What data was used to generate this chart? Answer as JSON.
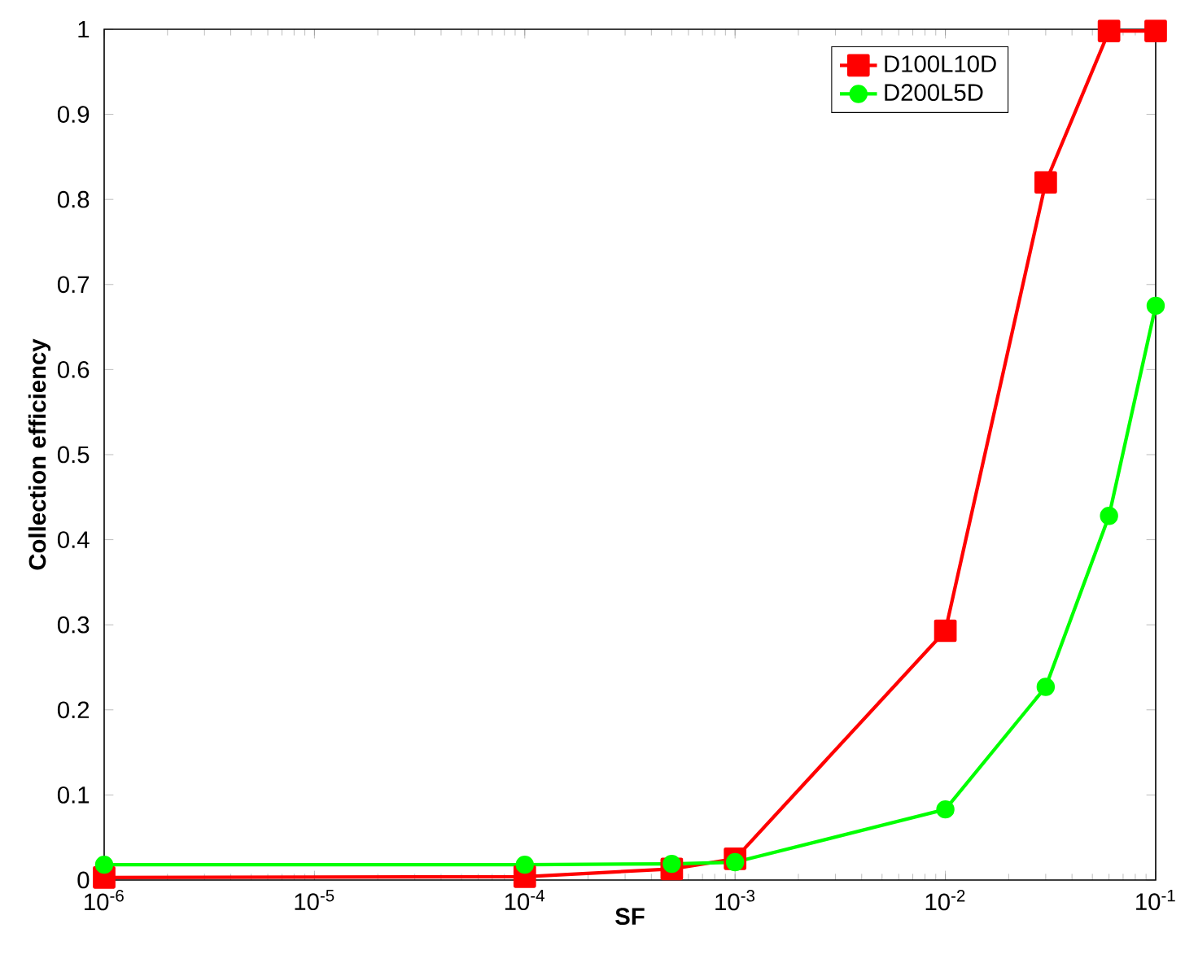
{
  "chart_data": {
    "type": "line",
    "xlabel": "SF",
    "ylabel": "Collection efficiency",
    "log": "x",
    "grid": false,
    "legend": "top right",
    "xlim": [
      1e-06,
      0.1
    ],
    "ylim": [
      0,
      1
    ],
    "xticks": [
      {
        "value": 1e-06,
        "label": "10$^{-6}$"
      },
      {
        "value": 1e-05,
        "label": "10$^{-5}$"
      },
      {
        "value": 0.0001,
        "label": "10$^{-4}$"
      },
      {
        "value": 0.001,
        "label": "10$^{-3}$"
      },
      {
        "value": 0.01,
        "label": "10$^{-2}$"
      },
      {
        "value": 0.1,
        "label": "10$^{-1}$"
      }
    ],
    "yticks": [
      0,
      0.1,
      0.2,
      0.3,
      0.4,
      0.5,
      0.6,
      0.7,
      0.8,
      0.9,
      1
    ],
    "x": [
      1e-06,
      0.0001,
      0.0005,
      0.001,
      0.01,
      0.03,
      0.06,
      0.1
    ],
    "series": [
      {
        "name": "D100L10D",
        "color": "#ff0000",
        "marker": "square",
        "values": [
          0.003,
          0.004,
          0.013,
          0.025,
          0.293,
          0.82,
          0.998,
          0.998
        ]
      },
      {
        "name": "D200L5D",
        "color": "#00ff00",
        "marker": "circle",
        "values": [
          0.018,
          0.018,
          0.019,
          0.021,
          0.083,
          0.227,
          0.428,
          0.675
        ]
      }
    ]
  }
}
